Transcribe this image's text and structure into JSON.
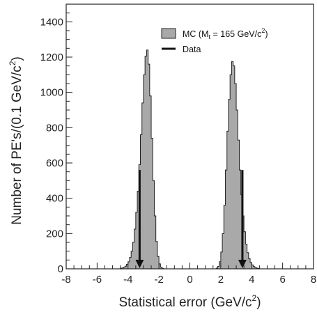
{
  "chart_data": {
    "type": "bar",
    "xlabel": "Statistical error (GeV/c",
    "xlabel_sup": "2",
    "xlabel_end": ")",
    "ylabel": "Number of PE's/(0.1 GeV/c",
    "ylabel_sup": "2",
    "ylabel_end": ")",
    "xlim": [
      -8,
      8
    ],
    "ylim": [
      0,
      1500
    ],
    "x_ticks": [
      -8,
      -6,
      -4,
      -2,
      0,
      2,
      4,
      6,
      8
    ],
    "y_ticks": [
      0,
      200,
      400,
      600,
      800,
      1000,
      1200,
      1400
    ],
    "bin_width": 0.1,
    "legend": {
      "position": "top-right",
      "mc_label_prefix": "MC (M",
      "mc_label_sub": "t",
      "mc_label_mid": " = 165 GeV/c",
      "mc_label_sup": "2",
      "mc_label_end": ")",
      "data_label": "Data"
    },
    "series": [
      {
        "name": "MC",
        "color": "#a9a9a9",
        "bins_left": {
          "x_start": -4.5,
          "values": [
            3,
            5,
            9,
            15,
            25,
            40,
            65,
            100,
            150,
            225,
            320,
            440,
            590,
            760,
            940,
            1100,
            1205,
            1240,
            1160,
            980,
            740,
            500,
            300,
            155,
            70,
            28,
            10,
            3
          ]
        },
        "bins_right": {
          "x_start": 1.7,
          "values": [
            4,
            14,
            40,
            95,
            200,
            360,
            560,
            780,
            960,
            1100,
            1175,
            1150,
            1050,
            900,
            730,
            560,
            420,
            300,
            210,
            140,
            92,
            58,
            36,
            22,
            13,
            8,
            4,
            2
          ]
        }
      }
    ],
    "data_markers": [
      {
        "name": "Data",
        "x": -3.25,
        "y_top": 560
      },
      {
        "name": "Data",
        "x": 3.4,
        "y_top": 560
      }
    ]
  }
}
